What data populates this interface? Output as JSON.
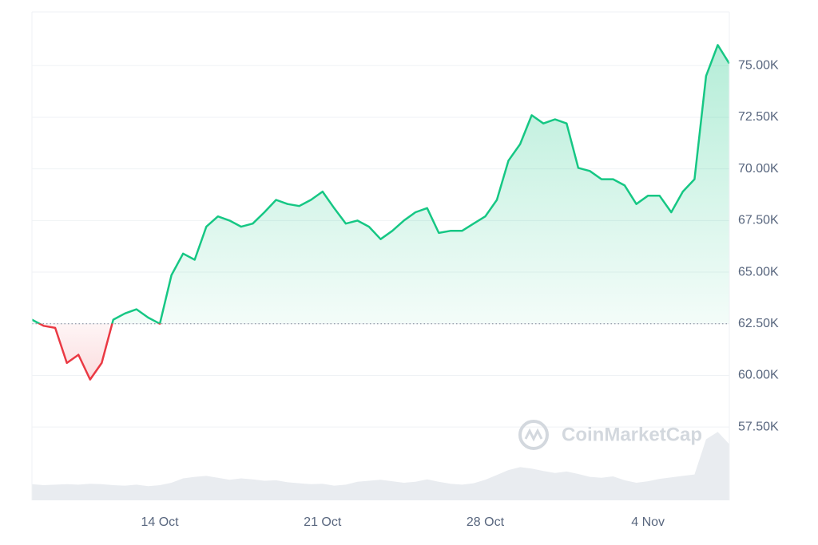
{
  "chart_data": {
    "type": "line",
    "categories": [
      null,
      null,
      null,
      null,
      null,
      null,
      null,
      null,
      null,
      null,
      null,
      "14 Oct",
      null,
      null,
      null,
      null,
      null,
      null,
      null,
      null,
      null,
      null,
      null,
      null,
      null,
      "21 Oct",
      null,
      null,
      null,
      null,
      null,
      null,
      null,
      null,
      null,
      null,
      null,
      null,
      null,
      "28 Oct",
      null,
      null,
      null,
      null,
      null,
      null,
      null,
      null,
      null,
      null,
      null,
      null,
      null,
      "4 Nov",
      null,
      null,
      null,
      null,
      null,
      null,
      null
    ],
    "series": [
      {
        "color": "#16c784",
        "color_down": "#ea3943",
        "values": [
          62700,
          62400,
          62300,
          60600,
          61000,
          59800,
          60600,
          62700,
          63000,
          63200,
          62800,
          62500,
          64850,
          65900,
          65600,
          67200,
          67700,
          67500,
          67200,
          67350,
          67900,
          68500,
          68300,
          68200,
          68500,
          68900,
          68100,
          67350,
          67500,
          67200,
          66600,
          67000,
          67500,
          67900,
          68100,
          66900,
          67000,
          67000,
          67350,
          67700,
          68500,
          70400,
          71200,
          72600,
          72200,
          72400,
          72200,
          70050,
          69900,
          69500,
          69500,
          69200,
          68300,
          68700,
          68700,
          67900,
          68900,
          69500,
          74500,
          76000,
          75100
        ]
      },
      {
        "axis": "y2",
        "color": "#e9ecf0",
        "values": [
          3.3,
          3.1,
          3.2,
          3.3,
          3.2,
          3.4,
          3.3,
          3.1,
          3.0,
          3.2,
          2.9,
          3.1,
          3.6,
          4.5,
          4.8,
          5.0,
          4.6,
          4.2,
          4.5,
          4.3,
          4.0,
          4.1,
          3.7,
          3.5,
          3.3,
          3.4,
          3.0,
          3.2,
          3.8,
          4.0,
          4.2,
          3.9,
          3.6,
          3.8,
          4.3,
          3.8,
          3.4,
          3.2,
          3.5,
          4.2,
          5.2,
          6.2,
          6.8,
          6.5,
          6.0,
          5.6,
          5.9,
          5.4,
          4.8,
          4.6,
          4.9,
          4.1,
          3.6,
          3.9,
          4.4,
          4.7,
          5.0,
          5.3,
          12.5,
          14.0,
          11.5
        ]
      }
    ],
    "baseline": 62500,
    "ylim": [
      53950,
      77600
    ],
    "y2lim": [
      0,
      100
    ],
    "yticks": [
      {
        "value": 57500,
        "label": "57.50K"
      },
      {
        "value": 60000,
        "label": "60.00K"
      },
      {
        "value": 62500,
        "label": "62.50K"
      },
      {
        "value": 65000,
        "label": "65.00K"
      },
      {
        "value": 67500,
        "label": "67.50K"
      },
      {
        "value": 70000,
        "label": "70.00K"
      },
      {
        "value": 72500,
        "label": "72.50K"
      },
      {
        "value": 75000,
        "label": "75.00K"
      }
    ],
    "grid": true,
    "watermark": "CoinMarketCap"
  }
}
